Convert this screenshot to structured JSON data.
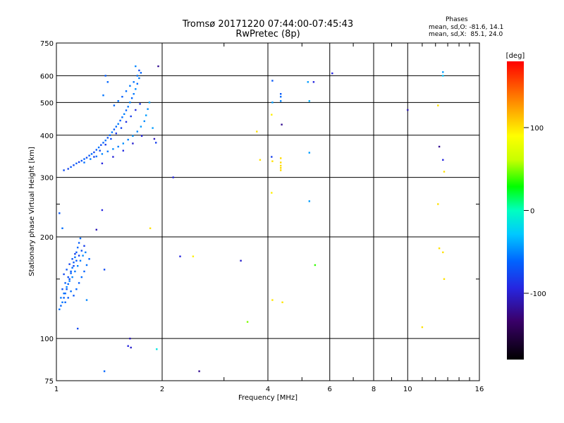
{
  "chart_data": {
    "type": "scatter",
    "title": "Tromsø 20171220 07:44:00-07:45:43",
    "subtitle": "RwPretec (8p)",
    "xlabel": "Frequency [MHz]",
    "ylabel": "Stationary phase Virtual Height [km]",
    "x_scale": "log",
    "y_scale": "log",
    "xlim": [
      1,
      16
    ],
    "ylim": [
      75,
      750
    ],
    "x_ticks": [
      1,
      2,
      4,
      6,
      8,
      10,
      16
    ],
    "y_ticks": [
      75,
      100,
      200,
      300,
      400,
      500,
      600,
      750
    ],
    "grid": true,
    "colorbar": {
      "label": "[deg]",
      "range": [
        -180,
        180
      ],
      "ticks": [
        100,
        0,
        -100
      ]
    },
    "stats": {
      "header": "Phases",
      "o_line": "mean, sd,O: -81.6, 14.1",
      "x_line": "mean, sd,X:  85.1, 24.0"
    },
    "points": [
      [
        1.05,
        315,
        -95
      ],
      [
        1.08,
        318,
        -98
      ],
      [
        1.1,
        322,
        -90
      ],
      [
        1.12,
        326,
        -96
      ],
      [
        1.14,
        330,
        -88
      ],
      [
        1.16,
        333,
        -100
      ],
      [
        1.18,
        336,
        -92
      ],
      [
        1.2,
        340,
        -85
      ],
      [
        1.22,
        343,
        -95
      ],
      [
        1.24,
        348,
        -90
      ],
      [
        1.26,
        352,
        -82
      ],
      [
        1.28,
        356,
        -96
      ],
      [
        1.3,
        362,
        -88
      ],
      [
        1.32,
        368,
        -80
      ],
      [
        1.34,
        374,
        -94
      ],
      [
        1.36,
        380,
        -86
      ],
      [
        1.38,
        386,
        -78
      ],
      [
        1.4,
        393,
        -92
      ],
      [
        1.42,
        400,
        -84
      ],
      [
        1.44,
        408,
        -76
      ],
      [
        1.46,
        416,
        -90
      ],
      [
        1.48,
        424,
        -82
      ],
      [
        1.5,
        432,
        -74
      ],
      [
        1.52,
        442,
        -88
      ],
      [
        1.54,
        452,
        -80
      ],
      [
        1.56,
        462,
        -72
      ],
      [
        1.58,
        474,
        -86
      ],
      [
        1.6,
        486,
        -78
      ],
      [
        1.62,
        500,
        -70
      ],
      [
        1.64,
        515,
        -84
      ],
      [
        1.66,
        530,
        -76
      ],
      [
        1.68,
        548,
        -68
      ],
      [
        1.7,
        568,
        -82
      ],
      [
        1.72,
        590,
        -74
      ],
      [
        1.2,
        332,
        -80
      ],
      [
        1.25,
        340,
        -72
      ],
      [
        1.3,
        346,
        -78
      ],
      [
        1.35,
        352,
        -70
      ],
      [
        1.4,
        358,
        -76
      ],
      [
        1.45,
        364,
        -68
      ],
      [
        1.5,
        370,
        -74
      ],
      [
        1.55,
        378,
        -66
      ],
      [
        1.6,
        388,
        -72
      ],
      [
        1.65,
        398,
        -64
      ],
      [
        1.7,
        410,
        -70
      ],
      [
        1.74,
        424,
        -62
      ],
      [
        1.78,
        440,
        -68
      ],
      [
        1.8,
        458,
        -60
      ],
      [
        1.82,
        478,
        -66
      ],
      [
        1.84,
        500,
        -58
      ],
      [
        1.28,
        345,
        -100
      ],
      [
        1.33,
        360,
        -95
      ],
      [
        1.38,
        375,
        -102
      ],
      [
        1.43,
        390,
        -96
      ],
      [
        1.48,
        405,
        -104
      ],
      [
        1.53,
        420,
        -98
      ],
      [
        1.58,
        438,
        -106
      ],
      [
        1.63,
        455,
        -100
      ],
      [
        1.68,
        475,
        -108
      ],
      [
        1.73,
        495,
        -102
      ],
      [
        1.35,
        330,
        -110
      ],
      [
        1.45,
        345,
        -112
      ],
      [
        1.55,
        360,
        -108
      ],
      [
        1.65,
        378,
        -114
      ],
      [
        1.75,
        398,
        -110
      ],
      [
        1.62,
        560,
        -75
      ],
      [
        1.66,
        575,
        -78
      ],
      [
        1.7,
        600,
        -80
      ],
      [
        1.74,
        612,
        -85
      ],
      [
        1.68,
        640,
        -70
      ],
      [
        1.72,
        622,
        -95
      ],
      [
        1.58,
        540,
        -82
      ],
      [
        1.54,
        520,
        -88
      ],
      [
        1.5,
        505,
        -79
      ],
      [
        1.46,
        490,
        -84
      ],
      [
        1.36,
        525,
        -78
      ],
      [
        1.38,
        600,
        -88
      ],
      [
        1.4,
        575,
        -84
      ],
      [
        1.02,
        122,
        -80
      ],
      [
        1.03,
        125,
        -85
      ],
      [
        1.04,
        128,
        -78
      ],
      [
        1.05,
        132,
        -88
      ],
      [
        1.06,
        136,
        -82
      ],
      [
        1.07,
        140,
        -90
      ],
      [
        1.08,
        145,
        -84
      ],
      [
        1.09,
        150,
        -92
      ],
      [
        1.1,
        156,
        -86
      ],
      [
        1.11,
        162,
        -80
      ],
      [
        1.12,
        168,
        -88
      ],
      [
        1.13,
        174,
        -82
      ],
      [
        1.14,
        180,
        -90
      ],
      [
        1.15,
        186,
        -84
      ],
      [
        1.16,
        192,
        -88
      ],
      [
        1.17,
        198,
        -82
      ],
      [
        1.04,
        140,
        -92
      ],
      [
        1.06,
        146,
        -86
      ],
      [
        1.08,
        152,
        -94
      ],
      [
        1.1,
        158,
        -88
      ],
      [
        1.12,
        164,
        -96
      ],
      [
        1.14,
        170,
        -90
      ],
      [
        1.16,
        176,
        -98
      ],
      [
        1.18,
        182,
        -92
      ],
      [
        1.2,
        188,
        -100
      ],
      [
        1.03,
        132,
        -76
      ],
      [
        1.05,
        136,
        -80
      ],
      [
        1.07,
        142,
        -74
      ],
      [
        1.09,
        148,
        -78
      ],
      [
        1.11,
        152,
        -72
      ],
      [
        1.13,
        158,
        -76
      ],
      [
        1.15,
        164,
        -70
      ],
      [
        1.17,
        170,
        -74
      ],
      [
        1.19,
        176,
        -68
      ],
      [
        1.21,
        180,
        -72
      ],
      [
        1.05,
        155,
        -96
      ],
      [
        1.07,
        160,
        -90
      ],
      [
        1.09,
        166,
        -98
      ],
      [
        1.11,
        172,
        -92
      ],
      [
        1.13,
        178,
        -100
      ],
      [
        1.06,
        128,
        -84
      ],
      [
        1.08,
        132,
        -88
      ],
      [
        1.1,
        138,
        -82
      ],
      [
        1.12,
        134,
        -90
      ],
      [
        1.14,
        140,
        -84
      ],
      [
        1.16,
        146,
        -88
      ],
      [
        1.18,
        152,
        -82
      ],
      [
        1.2,
        158,
        -86
      ],
      [
        1.22,
        165,
        -80
      ],
      [
        1.24,
        172,
        -84
      ],
      [
        1.04,
        212,
        -80
      ],
      [
        1.02,
        235,
        -90
      ],
      [
        1.3,
        210,
        -120
      ],
      [
        1.35,
        240,
        -110
      ],
      [
        1.15,
        107,
        -95
      ],
      [
        1.22,
        130,
        -70
      ],
      [
        1.37,
        160,
        -95
      ],
      [
        1.37,
        80,
        -85
      ],
      [
        1.6,
        95,
        -110
      ],
      [
        1.62,
        100,
        -120
      ],
      [
        1.63,
        94,
        -115
      ],
      [
        1.85,
        212,
        110
      ],
      [
        1.93,
        93,
        -20
      ],
      [
        1.95,
        640,
        -130
      ],
      [
        1.9,
        390,
        -120
      ],
      [
        1.92,
        380,
        -100
      ],
      [
        1.88,
        420,
        -60
      ],
      [
        2.15,
        300,
        -110
      ],
      [
        2.25,
        175,
        -110
      ],
      [
        2.45,
        175,
        105
      ],
      [
        2.55,
        80,
        -130
      ],
      [
        3.35,
        170,
        -115
      ],
      [
        3.5,
        112,
        55
      ],
      [
        3.72,
        410,
        110
      ],
      [
        3.8,
        338,
        110
      ],
      [
        4.12,
        580,
        -90
      ],
      [
        4.12,
        500,
        -60
      ],
      [
        4.1,
        460,
        105
      ],
      [
        4.12,
        335,
        110
      ],
      [
        4.1,
        270,
        105
      ],
      [
        4.1,
        345,
        -100
      ],
      [
        4.12,
        130,
        108
      ],
      [
        4.35,
        530,
        -90
      ],
      [
        4.35,
        505,
        -70
      ],
      [
        4.35,
        520,
        -80
      ],
      [
        4.35,
        325,
        112
      ],
      [
        4.35,
        332,
        112
      ],
      [
        4.35,
        320,
        112
      ],
      [
        4.35,
        315,
        112
      ],
      [
        4.35,
        342,
        112
      ],
      [
        4.38,
        430,
        -130
      ],
      [
        4.4,
        128,
        108
      ],
      [
        5.2,
        575,
        -60
      ],
      [
        5.25,
        505,
        -50
      ],
      [
        5.25,
        255,
        -60
      ],
      [
        5.25,
        355,
        -60
      ],
      [
        5.4,
        575,
        -110
      ],
      [
        5.45,
        165,
        40
      ],
      [
        6.1,
        610,
        -110
      ],
      [
        10.0,
        475,
        -120
      ],
      [
        11.0,
        108,
        110
      ],
      [
        12.2,
        490,
        110
      ],
      [
        12.2,
        250,
        110
      ],
      [
        12.3,
        185,
        110
      ],
      [
        12.3,
        370,
        -130
      ],
      [
        12.6,
        338,
        -110
      ],
      [
        12.6,
        180,
        110
      ],
      [
        12.7,
        150,
        110
      ],
      [
        12.7,
        312,
        110
      ],
      [
        12.6,
        615,
        -60
      ],
      [
        12.6,
        600,
        -40
      ]
    ]
  }
}
